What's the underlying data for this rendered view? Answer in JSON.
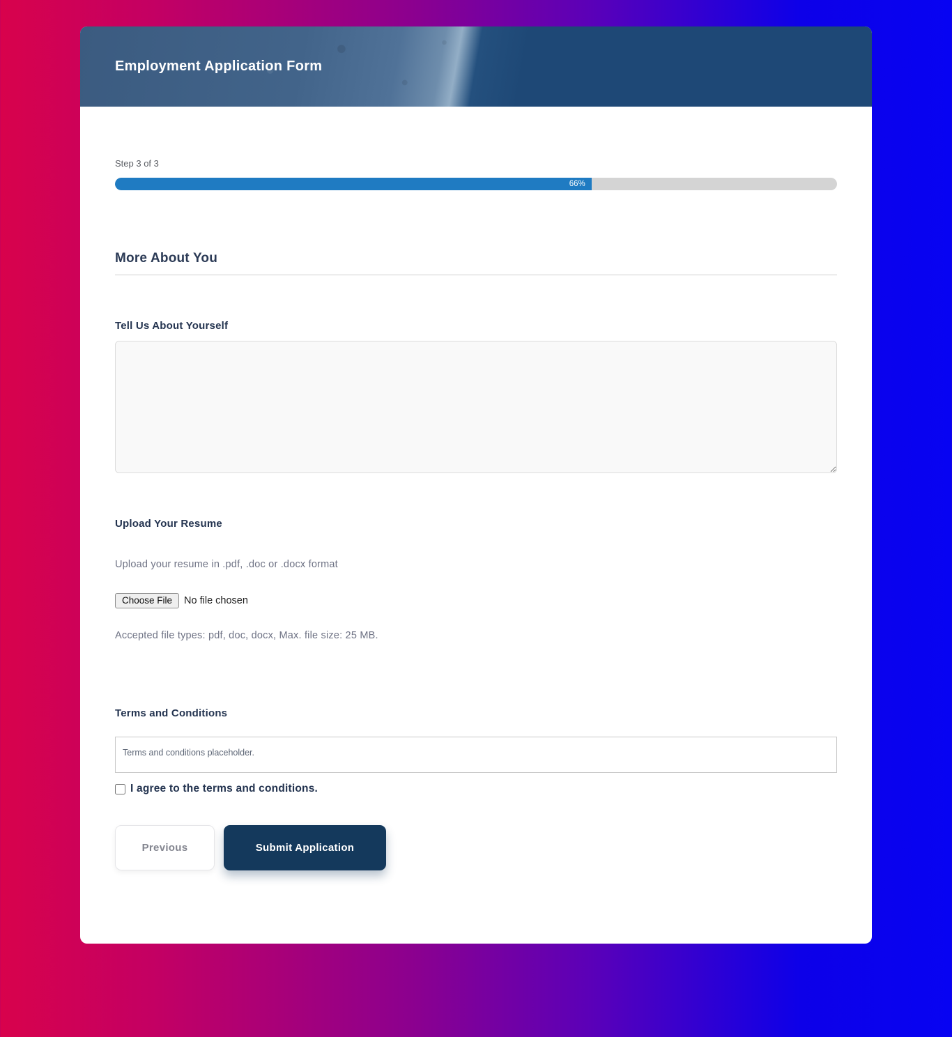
{
  "page": {
    "background_colors": {
      "left": "#d8024c",
      "middle": "#8a0090",
      "right": "#0703f2"
    }
  },
  "header": {
    "title": "Employment Application Form",
    "background_color": "#1e4876"
  },
  "progress": {
    "step_label": "Step 3 of 3",
    "percent": 66,
    "percent_label": "66%",
    "fill_color": "#1f7bc2",
    "track_color": "#d4d4d4"
  },
  "section": {
    "title": "More About You"
  },
  "about": {
    "label": "Tell Us About Yourself",
    "value": ""
  },
  "resume": {
    "label": "Upload Your Resume",
    "description": "Upload your resume in .pdf, .doc or .docx format",
    "choose_file_label": "Choose File",
    "file_status": "No file chosen",
    "hint": "Accepted file types: pdf, doc, docx, Max. file size: 25 MB."
  },
  "terms": {
    "label": "Terms and Conditions",
    "placeholder_text": "Terms and conditions placeholder.",
    "agree_label": "I agree to the terms and conditions.",
    "checked": false
  },
  "buttons": {
    "previous": "Previous",
    "submit": "Submit Application",
    "submit_color": "#14395c"
  }
}
